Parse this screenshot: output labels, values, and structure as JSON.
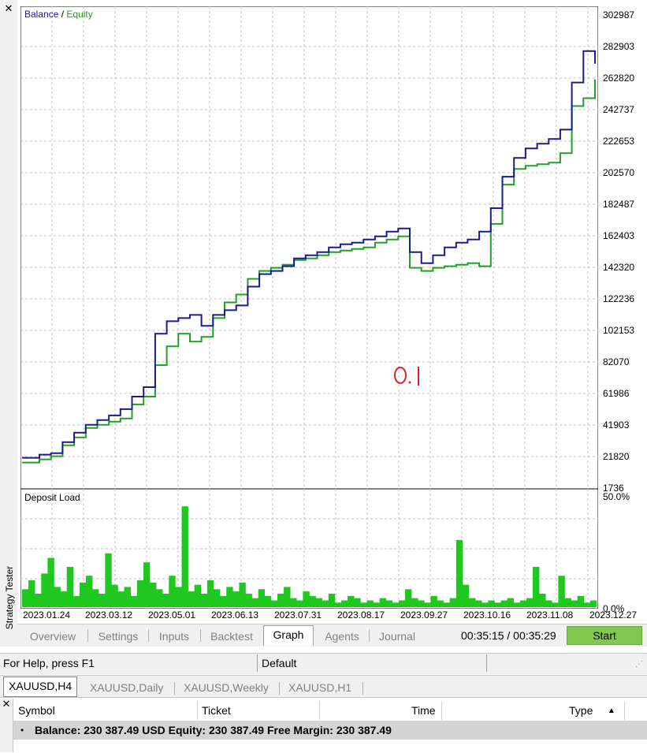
{
  "window": {
    "side_label": "Strategy Tester"
  },
  "main_chart": {
    "legend_balance": "Balance",
    "legend_sep": " / ",
    "legend_equity": "Equity",
    "y_ticks": [
      "302987",
      "282903",
      "262820",
      "242737",
      "222653",
      "202570",
      "182487",
      "162403",
      "142320",
      "122236",
      "102153",
      "82070",
      "61986",
      "41903",
      "21820",
      "1736"
    ],
    "annotation": "0.1"
  },
  "deposit_chart": {
    "title": "Deposit Load",
    "y_max_label": "50.0%",
    "y_min_label": "0.0%"
  },
  "x_ticks": [
    "2023.01.24",
    "2023.03.12",
    "2023.05.01",
    "2023.06.13",
    "2023.07.31",
    "2023.08.17",
    "2023.09.27",
    "2023.10.16",
    "2023.11.08",
    "2023.12.27"
  ],
  "chart_data": [
    {
      "type": "line",
      "series": [
        {
          "name": "Balance",
          "color": "#1b1b8e",
          "x": [
            0,
            3,
            5,
            7,
            9,
            11,
            13,
            15,
            17,
            19,
            21,
            23,
            25,
            27,
            29,
            31,
            33,
            35,
            37,
            39,
            41,
            43,
            45,
            47,
            49,
            51,
            53,
            55,
            57,
            59,
            61,
            63,
            65,
            67,
            69,
            71,
            73,
            75,
            77,
            79,
            81,
            83,
            85,
            87,
            89,
            91,
            93,
            95,
            97,
            99
          ],
          "y": [
            21000,
            23000,
            24000,
            31000,
            37000,
            42000,
            45000,
            48000,
            52000,
            60000,
            66000,
            100000,
            108000,
            110000,
            112000,
            105000,
            112000,
            115000,
            118000,
            130000,
            138000,
            140000,
            143000,
            148000,
            150000,
            152000,
            155000,
            157000,
            158000,
            160000,
            162000,
            165000,
            167000,
            152000,
            145000,
            150000,
            155000,
            158000,
            160000,
            165000,
            180000,
            200000,
            212000,
            218000,
            221000,
            224000,
            230000,
            260000,
            280000,
            272000
          ]
        },
        {
          "name": "Equity",
          "color": "#22a022",
          "x": [
            0,
            3,
            5,
            7,
            9,
            11,
            13,
            15,
            17,
            19,
            21,
            23,
            25,
            27,
            29,
            31,
            33,
            35,
            37,
            39,
            41,
            43,
            45,
            47,
            49,
            51,
            53,
            55,
            57,
            59,
            61,
            63,
            65,
            67,
            69,
            71,
            73,
            75,
            77,
            79,
            81,
            83,
            85,
            87,
            89,
            91,
            93,
            95,
            97,
            99
          ],
          "y": [
            18000,
            20000,
            22000,
            29000,
            34000,
            40000,
            42000,
            44000,
            46000,
            55000,
            60000,
            80000,
            92000,
            100000,
            95000,
            98000,
            110000,
            120000,
            125000,
            135000,
            140000,
            142000,
            144000,
            147000,
            148000,
            150000,
            152000,
            153000,
            154000,
            155000,
            158000,
            160000,
            162000,
            142000,
            140000,
            142000,
            143000,
            144000,
            145000,
            143000,
            170000,
            195000,
            205000,
            207000,
            208000,
            209000,
            215000,
            245000,
            250000,
            262000
          ]
        }
      ],
      "ylim": [
        1736,
        302987
      ]
    },
    {
      "type": "bar",
      "title": "Deposit Load",
      "ylim": [
        0,
        50
      ],
      "values": [
        8,
        12,
        6,
        15,
        22,
        9,
        7,
        18,
        5,
        11,
        14,
        8,
        6,
        24,
        10,
        7,
        9,
        5,
        12,
        20,
        11,
        8,
        6,
        14,
        9,
        45,
        7,
        10,
        6,
        12,
        8,
        5,
        9,
        7,
        11,
        6,
        4,
        8,
        5,
        3,
        6,
        9,
        4,
        3,
        7,
        5,
        4,
        3,
        6,
        2,
        3,
        5,
        4,
        2,
        3,
        2,
        4,
        3,
        2,
        3,
        8,
        4,
        3,
        2,
        5,
        3,
        2,
        4,
        30,
        10,
        4,
        3,
        2,
        3,
        2,
        3,
        4,
        2,
        3,
        4,
        18,
        6,
        3,
        2,
        14,
        4,
        3,
        5,
        2,
        3
      ]
    }
  ],
  "tabs": {
    "items": [
      "Overview",
      "Settings",
      "Inputs",
      "Backtest",
      "Graph",
      "Agents",
      "Journal"
    ],
    "active": "Graph",
    "time": "00:35:15 / 00:35:29",
    "start": "Start"
  },
  "status": {
    "help": "For Help, press F1",
    "profile": "Default"
  },
  "chart_tabs": {
    "items": [
      "XAUUSD,H4",
      "XAUUSD,Daily",
      "XAUUSD,Weekly",
      "XAUUSD,H1"
    ]
  },
  "terminal": {
    "columns": [
      "Symbol",
      "Ticket",
      "Time",
      "Type"
    ],
    "balance_line": "Balance: 230 387.49 USD  Equity: 230 387.49  Free Margin: 230 387.49"
  }
}
